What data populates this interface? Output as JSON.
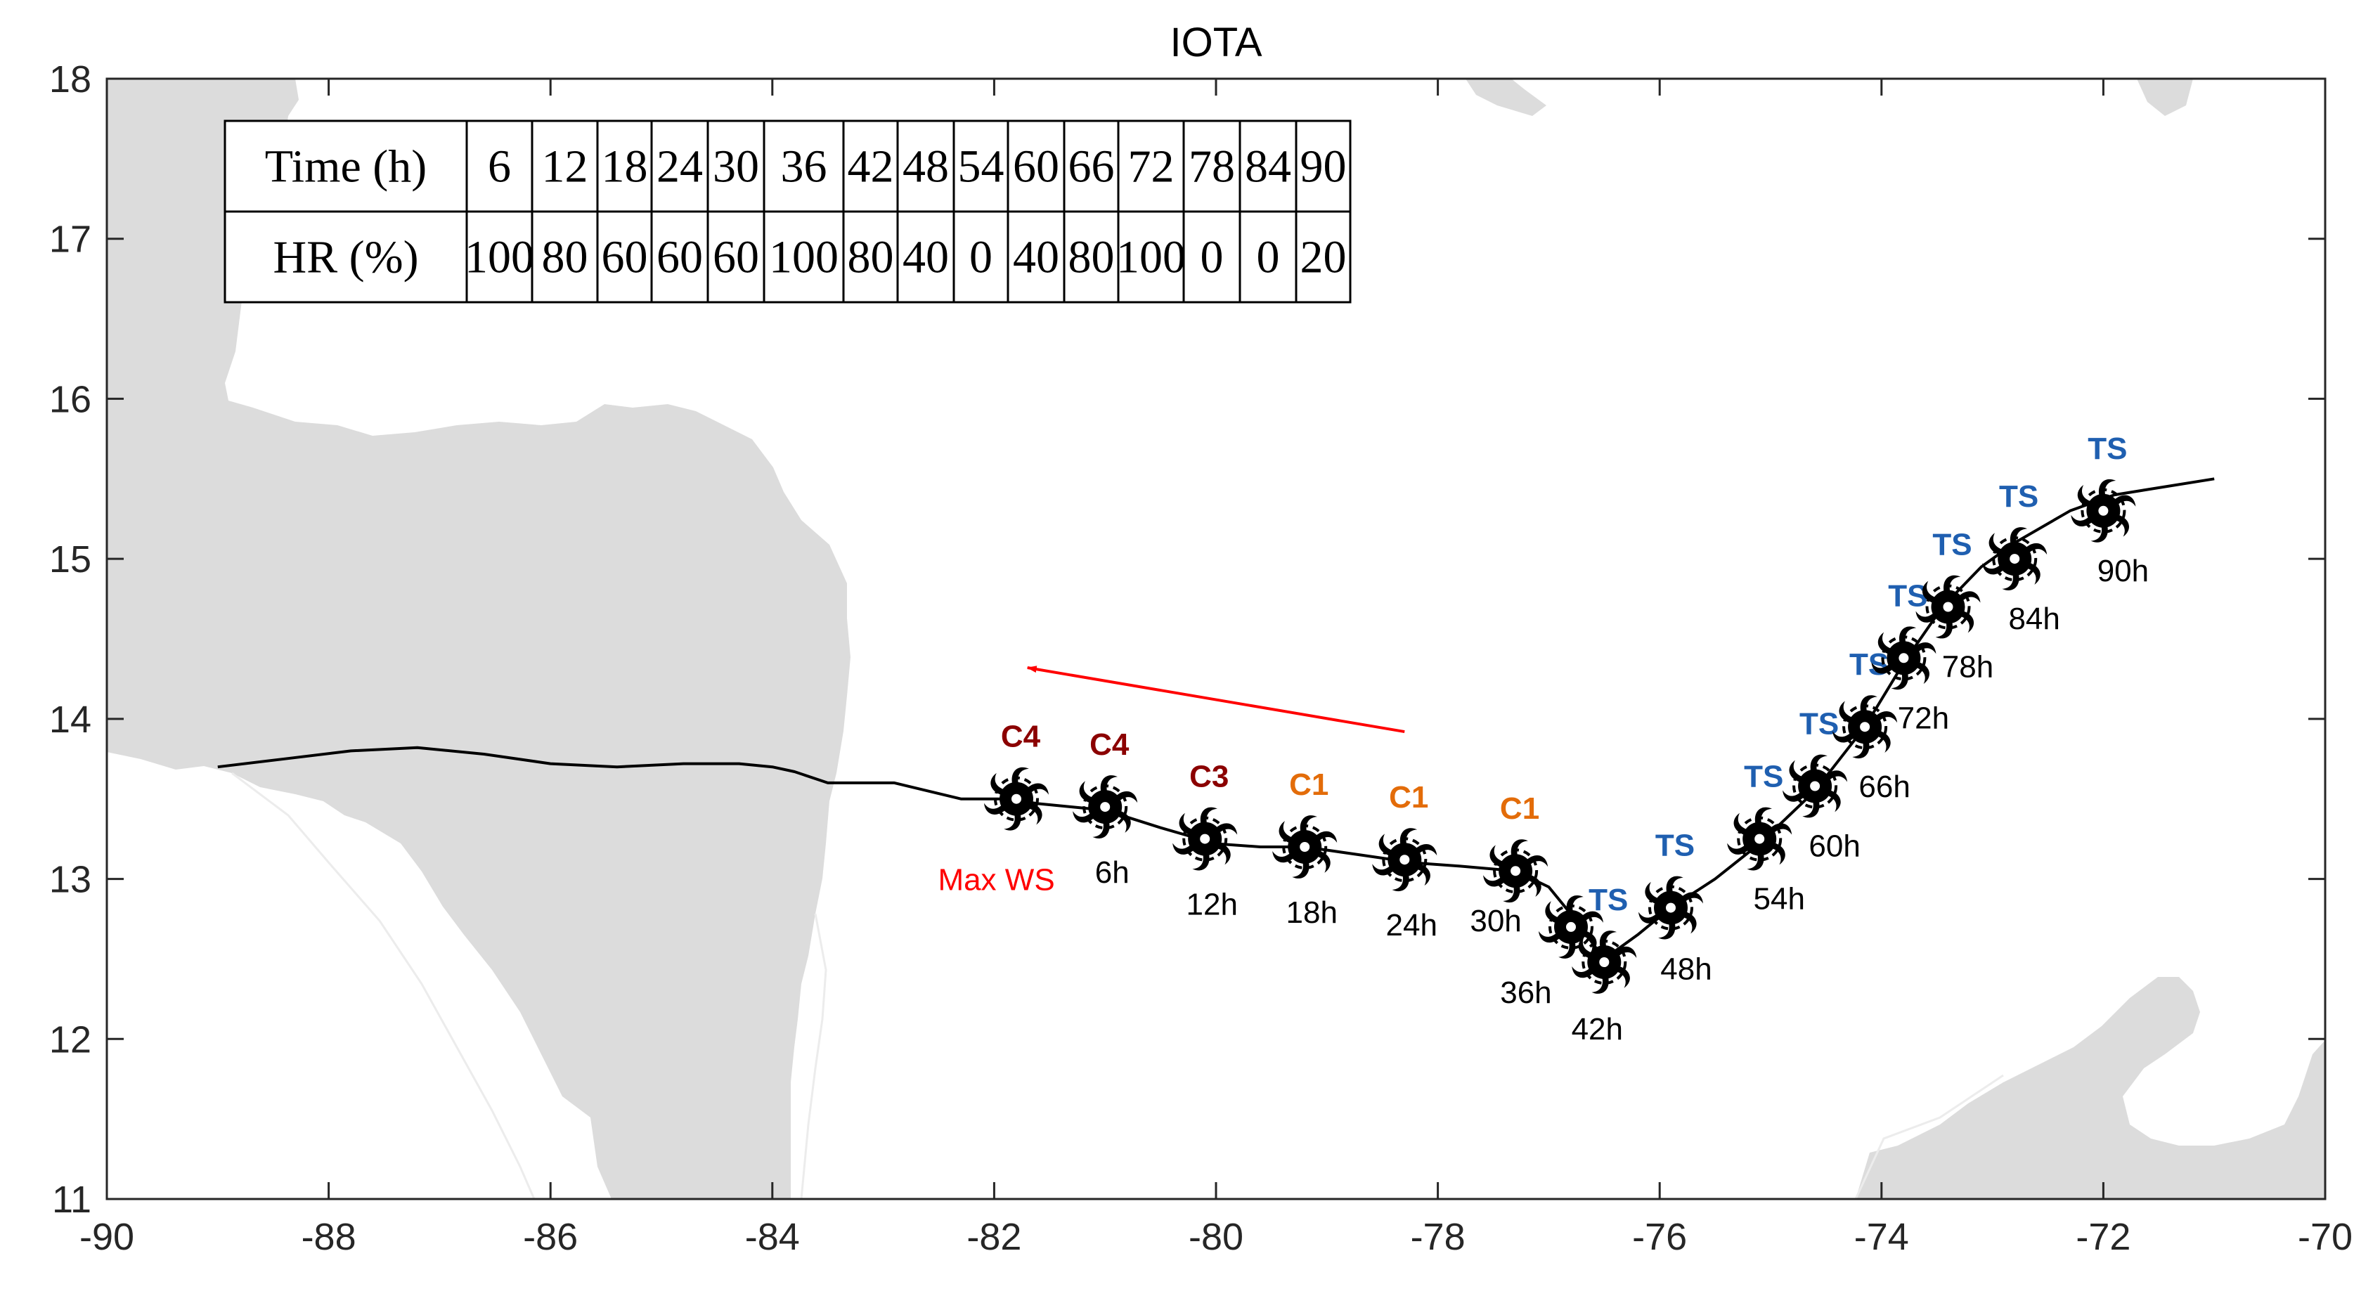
{
  "chart_data": {
    "type": "line",
    "title": "IOTA",
    "xlabel": "",
    "ylabel": "",
    "xlim": [
      -90,
      -70
    ],
    "ylim": [
      11,
      18
    ],
    "x_ticks": [
      "-90",
      "-88",
      "-86",
      "-84",
      "-82",
      "-80",
      "-78",
      "-76",
      "-74",
      "-72",
      "-70"
    ],
    "y_ticks": [
      "11",
      "12",
      "13",
      "14",
      "15",
      "16",
      "17",
      "18"
    ],
    "grid": false,
    "track_line": {
      "name": "track",
      "lon": [
        -89.0,
        -88.4,
        -87.8,
        -87.2,
        -86.6,
        -86.0,
        -85.4,
        -84.8,
        -84.3,
        -84.0,
        -83.8,
        -83.5,
        -83.2,
        -82.9,
        -82.6,
        -82.3,
        -81.9,
        -81.6,
        -81.3,
        -81.0,
        -80.5,
        -80.0,
        -79.6,
        -79.2,
        -78.7,
        -78.2,
        -77.8,
        -77.3,
        -77.0,
        -76.8,
        -76.5,
        -76.2,
        -75.9,
        -75.5,
        -75.1,
        -74.6,
        -74.15,
        -73.8,
        -73.45,
        -73.1,
        -72.8,
        -72.3,
        -71.9,
        -71.0
      ],
      "lat": [
        13.7,
        13.75,
        13.8,
        13.82,
        13.78,
        13.72,
        13.7,
        13.72,
        13.72,
        13.7,
        13.67,
        13.6,
        13.6,
        13.6,
        13.55,
        13.5,
        13.5,
        13.47,
        13.45,
        13.43,
        13.32,
        13.22,
        13.2,
        13.2,
        13.15,
        13.1,
        13.08,
        13.05,
        12.95,
        12.78,
        12.5,
        12.65,
        12.82,
        13.0,
        13.22,
        13.55,
        13.95,
        14.35,
        14.7,
        14.95,
        15.1,
        15.3,
        15.4,
        15.5
      ]
    },
    "storm_points": [
      {
        "label": "",
        "lon": -81.8,
        "lat": 13.5,
        "category": "C4",
        "category_color": "#8b0000"
      },
      {
        "label": "6h",
        "lon": -81.0,
        "lat": 13.45,
        "category": "C4",
        "category_color": "#8b0000"
      },
      {
        "label": "12h",
        "lon": -80.1,
        "lat": 13.25,
        "category": "C3",
        "category_color": "#8b0000"
      },
      {
        "label": "18h",
        "lon": -79.2,
        "lat": 13.2,
        "category": "C1",
        "category_color": "#e36c09"
      },
      {
        "label": "24h",
        "lon": -78.3,
        "lat": 13.12,
        "category": "C1",
        "category_color": "#e36c09"
      },
      {
        "label": "30h",
        "lon": -77.3,
        "lat": 13.05,
        "category": "C1",
        "category_color": "#e36c09"
      },
      {
        "label": "36h",
        "lon": -76.8,
        "lat": 12.7,
        "category": "",
        "category_color": "#8b0000"
      },
      {
        "label": "42h",
        "lon": -76.5,
        "lat": 12.48,
        "category": "TS",
        "category_color": "#1f5fb0"
      },
      {
        "label": "48h",
        "lon": -75.9,
        "lat": 12.82,
        "category": "TS",
        "category_color": "#1f5fb0"
      },
      {
        "label": "54h",
        "lon": -75.1,
        "lat": 13.25,
        "category": "TS",
        "category_color": "#1f5fb0"
      },
      {
        "label": "60h",
        "lon": -74.6,
        "lat": 13.58,
        "category": "TS",
        "category_color": "#1f5fb0"
      },
      {
        "label": "66h",
        "lon": -74.15,
        "lat": 13.95,
        "category": "TS",
        "category_color": "#1f5fb0"
      },
      {
        "label": "72h",
        "lon": -73.8,
        "lat": 14.38,
        "category": "TS",
        "category_color": "#1f5fb0"
      },
      {
        "label": "78h",
        "lon": -73.4,
        "lat": 14.7,
        "category": "TS",
        "category_color": "#1f5fb0"
      },
      {
        "label": "84h",
        "lon": -72.8,
        "lat": 15.0,
        "category": "TS",
        "category_color": "#1f5fb0"
      },
      {
        "label": "90h",
        "lon": -72.0,
        "lat": 15.3,
        "category": "TS",
        "category_color": "#1f5fb0"
      }
    ],
    "annotations": [
      {
        "text": "Max WS",
        "lon": -81.98,
        "lat": 12.93,
        "color": "#ff0000"
      }
    ],
    "arrow": {
      "from": {
        "lon": -78.3,
        "lat": 13.92
      },
      "to": {
        "lon": -81.7,
        "lat": 14.32
      },
      "color": "#ff0000"
    },
    "table": {
      "header": "Time (h)",
      "row_label": "HR (%)",
      "times": [
        "6",
        "12",
        "18",
        "24",
        "30",
        "36",
        "42",
        "48",
        "54",
        "60",
        "66",
        "72",
        "78",
        "84",
        "90"
      ],
      "hr": [
        "100",
        "80",
        "60",
        "60",
        "60",
        "100",
        "80",
        "40",
        "0",
        "40",
        "80",
        "100",
        "0",
        "0",
        "20"
      ]
    },
    "land_color": "#dcdcdc"
  }
}
